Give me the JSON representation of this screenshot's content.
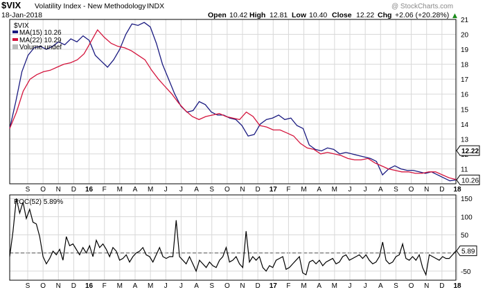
{
  "header": {
    "symbol": "$VIX",
    "name": "Volatility Index - New Methodology",
    "exchange": "INDX",
    "date": "18-Jan-2018",
    "watermark": "@ StockCharts.com",
    "open_label": "Open",
    "open_value": "10.42",
    "high_label": "High",
    "high_value": "12.81",
    "low_label": "Low",
    "low_value": "10.40",
    "close_label": "Close",
    "close_value": "12.22",
    "chg_label": "Chg",
    "chg_value": "+2.06 (+20.28%)",
    "chg_arrow": "▲"
  },
  "legend": {
    "symbol_label": "$VIX",
    "ma15_label": "MA(15) 10.26",
    "ma22_label": "MA(22) 10.29",
    "volume_label": "Volume undef",
    "roc_label": "ROC(52) 5.89%"
  },
  "colors": {
    "ma15": "#1a1a80",
    "ma22": "#d4143c",
    "roc": "#000000",
    "grid": "#d8d8d8",
    "frame": "#000000"
  },
  "chart_data": [
    {
      "type": "line",
      "title": "$VIX Volatility Index - New Methodology INDX",
      "x_axis_labels": [
        "S",
        "O",
        "N",
        "D",
        "16",
        "F",
        "M",
        "A",
        "M",
        "J",
        "J",
        "A",
        "S",
        "O",
        "N",
        "D",
        "17",
        "F",
        "M",
        "A",
        "M",
        "J",
        "J",
        "A",
        "S",
        "O",
        "N",
        "D",
        "18"
      ],
      "ylim": [
        10,
        21
      ],
      "y_ticks": [
        11,
        12,
        13,
        14,
        15,
        16,
        17,
        18,
        19,
        20,
        21
      ],
      "price_tags": [
        "12.22",
        "10.26"
      ],
      "series": [
        {
          "name": "MA(15) 10.26",
          "values": [
            13.7,
            15.5,
            17.5,
            18.6,
            19.1,
            19.2,
            19.0,
            19.2,
            19.5,
            19.3,
            19.7,
            19.5,
            19.9,
            19.6,
            18.6,
            18.2,
            17.8,
            18.3,
            19.0,
            20.0,
            20.7,
            20.6,
            20.8,
            20.5,
            19.4,
            18.0,
            17.0,
            16.0,
            15.2,
            14.8,
            14.9,
            15.5,
            15.3,
            14.8,
            14.6,
            14.6,
            14.4,
            14.3,
            13.9,
            13.2,
            13.3,
            14.0,
            14.3,
            14.4,
            14.6,
            14.3,
            14.4,
            13.9,
            13.7,
            12.6,
            12.3,
            12.2,
            12.4,
            12.3,
            12.0,
            12.1,
            12.0,
            11.9,
            11.8,
            11.7,
            11.5,
            10.6,
            11.0,
            11.2,
            11.0,
            10.9,
            10.9,
            10.8,
            10.7,
            10.8,
            10.6,
            10.4,
            10.2,
            10.26
          ]
        },
        {
          "name": "MA(22) 10.29",
          "values": [
            13.7,
            14.8,
            16.2,
            17.0,
            17.3,
            17.5,
            17.6,
            17.8,
            18.0,
            18.1,
            18.3,
            18.7,
            19.5,
            20.3,
            19.8,
            19.4,
            19.2,
            19.1,
            18.9,
            18.6,
            18.3,
            17.6,
            17.0,
            16.5,
            16.0,
            15.4,
            14.9,
            14.5,
            14.3,
            14.5,
            14.6,
            14.7,
            14.5,
            14.4,
            14.3,
            14.8,
            14.5,
            13.9,
            13.8,
            13.6,
            13.6,
            13.4,
            13.2,
            12.7,
            12.4,
            12.3,
            12.0,
            12.1,
            12.0,
            11.9,
            11.7,
            11.6,
            11.6,
            11.7,
            11.4,
            11.2,
            11.0,
            10.9,
            10.8,
            10.8,
            10.7,
            10.7,
            10.8,
            10.8,
            10.6,
            10.4,
            10.29
          ]
        }
      ]
    },
    {
      "type": "line",
      "title": "ROC(52) 5.89%",
      "x_axis_labels": [
        "S",
        "O",
        "N",
        "D",
        "16",
        "F",
        "M",
        "A",
        "M",
        "J",
        "J",
        "A",
        "S",
        "O",
        "N",
        "D",
        "17",
        "F",
        "M",
        "A",
        "M",
        "J",
        "J",
        "A",
        "S",
        "O",
        "N",
        "D",
        "18"
      ],
      "ylim": [
        -75,
        160
      ],
      "y_ticks": [
        -50,
        0,
        50,
        100,
        150
      ],
      "reference_line": 0,
      "price_tag": "5.89",
      "series": [
        {
          "name": "ROC(52) 5.89%",
          "values": [
            -10,
            60,
            150,
            110,
            140,
            95,
            120,
            85,
            80,
            45,
            -10,
            -30,
            -15,
            5,
            -5,
            10,
            -20,
            45,
            20,
            25,
            10,
            -5,
            15,
            0,
            20,
            -10,
            35,
            15,
            25,
            10,
            -10,
            15,
            5,
            -20,
            -15,
            -5,
            -25,
            -10,
            0,
            5,
            15,
            -5,
            -10,
            -25,
            -5,
            15,
            -10,
            -15,
            -10,
            -10,
            90,
            -10,
            -20,
            -30,
            -10,
            -30,
            -50,
            -20,
            -30,
            -40,
            -25,
            -35,
            -40,
            -20,
            -10,
            15,
            -25,
            -20,
            -10,
            -30,
            -40,
            60,
            -25,
            -10,
            -20,
            -10,
            -40,
            -50,
            -35,
            -40,
            -20,
            -15,
            -10,
            -45,
            -40,
            -30,
            -20,
            -10,
            -55,
            -60,
            -25,
            -20,
            -30,
            -20,
            -35,
            -25,
            -20,
            -15,
            -30,
            -25,
            -10,
            -5,
            -20,
            -15,
            -10,
            -5,
            -15,
            -5,
            -20,
            -30,
            -25,
            -10,
            30,
            -20,
            -30,
            -25,
            -10,
            -5,
            25,
            -15,
            -20,
            -10,
            -20,
            -5,
            -40,
            -60,
            -5,
            -10,
            -15,
            -20,
            -10,
            -15,
            -15,
            -5,
            5.89
          ]
        }
      ]
    }
  ]
}
